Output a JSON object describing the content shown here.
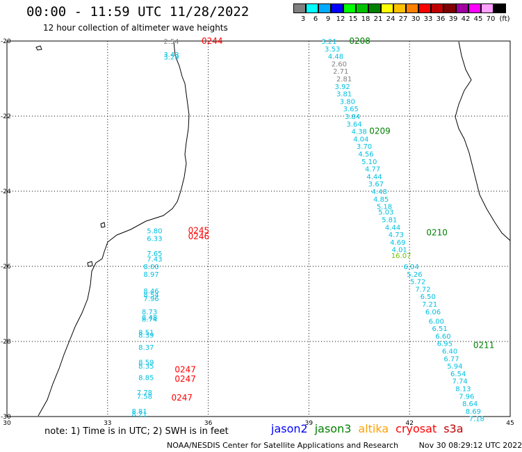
{
  "header": {
    "title": "00:00 - 11:59 UTC 11/28/2022",
    "subtitle": "12 hour collection of altimeter wave heights"
  },
  "colorbar": {
    "unit": "(ft)",
    "swatches": [
      {
        "color": "#808080",
        "label": "3"
      },
      {
        "color": "#00ffff",
        "label": "6"
      },
      {
        "color": "#00aaff",
        "label": "9"
      },
      {
        "color": "#0000ff",
        "label": "12"
      },
      {
        "color": "#00ff00",
        "label": "15"
      },
      {
        "color": "#00c000",
        "label": "18"
      },
      {
        "color": "#008000",
        "label": "21"
      },
      {
        "color": "#ffff00",
        "label": "24"
      },
      {
        "color": "#ffc000",
        "label": "27"
      },
      {
        "color": "#ff8000",
        "label": "30"
      },
      {
        "color": "#ff0000",
        "label": "33"
      },
      {
        "color": "#c00000",
        "label": "36"
      },
      {
        "color": "#800000",
        "label": "39"
      },
      {
        "color": "#a000a0",
        "label": "42"
      },
      {
        "color": "#ff00ff",
        "label": "45"
      },
      {
        "color": "#ffa0ff",
        "label": "70"
      },
      {
        "color": "#000000",
        "label": ""
      }
    ]
  },
  "map": {
    "lon_ticks": [
      "30",
      "33",
      "36",
      "39",
      "42",
      "45"
    ],
    "lat_ticks": [
      "-20",
      "-22",
      "-24",
      "-26",
      "-28",
      "-30"
    ],
    "lon_range": [
      30,
      45
    ],
    "lat_range": [
      -30,
      -20
    ],
    "pass_labels": [
      {
        "text": "0244",
        "lon": 35.8,
        "lat": -20.0,
        "color": "#ff0000"
      },
      {
        "text": "0245",
        "lon": 35.4,
        "lat": -25.05,
        "color": "#ff0000"
      },
      {
        "text": "0246",
        "lon": 35.4,
        "lat": -25.2,
        "color": "#ff0000"
      },
      {
        "text": "0247",
        "lon": 35.0,
        "lat": -28.75,
        "color": "#ff0000"
      },
      {
        "text": "0247",
        "lon": 35.0,
        "lat": -29.0,
        "color": "#ff0000"
      },
      {
        "text": "0247",
        "lon": 34.9,
        "lat": -29.5,
        "color": "#ff0000"
      },
      {
        "text": "0208",
        "lon": 40.2,
        "lat": -20.0,
        "color": "#008000"
      },
      {
        "text": "0209",
        "lon": 40.8,
        "lat": -22.4,
        "color": "#008000"
      },
      {
        "text": "0210",
        "lon": 42.5,
        "lat": -25.1,
        "color": "#008000"
      },
      {
        "text": "0211",
        "lon": 43.9,
        "lat": -28.1,
        "color": "#008000"
      }
    ],
    "wave_readings": [
      {
        "text": "2.54",
        "lon": 34.9,
        "lat": -20.0,
        "color": "#808080"
      },
      {
        "text": "3.43",
        "lon": 34.9,
        "lat": -20.35,
        "color": "#00c0e0"
      },
      {
        "text": "3.29",
        "lon": 34.9,
        "lat": -20.42,
        "color": "#00c0e0"
      },
      {
        "text": "5.80",
        "lon": 34.4,
        "lat": -25.05,
        "color": "#00c0e0"
      },
      {
        "text": "6.33",
        "lon": 34.4,
        "lat": -25.25,
        "color": "#00c0e0"
      },
      {
        "text": "7.65",
        "lon": 34.4,
        "lat": -25.65,
        "color": "#00c0e0"
      },
      {
        "text": "7.43",
        "lon": 34.4,
        "lat": -25.8,
        "color": "#00c0e0"
      },
      {
        "text": "8.00",
        "lon": 34.3,
        "lat": -26.0,
        "color": "#00c0e0"
      },
      {
        "text": "8.97",
        "lon": 34.3,
        "lat": -26.2,
        "color": "#00c0e0"
      },
      {
        "text": "8.46",
        "lon": 34.3,
        "lat": -26.65,
        "color": "#00c0e0"
      },
      {
        "text": "8.54",
        "lon": 34.3,
        "lat": -26.75,
        "color": "#00c0e0"
      },
      {
        "text": "7.96",
        "lon": 34.3,
        "lat": -26.85,
        "color": "#00c0e0"
      },
      {
        "text": "8.73",
        "lon": 34.25,
        "lat": -27.2,
        "color": "#00c0e0"
      },
      {
        "text": "8.48",
        "lon": 34.25,
        "lat": -27.35,
        "color": "#00c0e0"
      },
      {
        "text": "8.74",
        "lon": 34.25,
        "lat": -27.4,
        "color": "#00c0e0"
      },
      {
        "text": "8.51",
        "lon": 34.15,
        "lat": -27.75,
        "color": "#00c0e0"
      },
      {
        "text": "8.39",
        "lon": 34.15,
        "lat": -27.82,
        "color": "#00c0e0"
      },
      {
        "text": "8.37",
        "lon": 34.15,
        "lat": -28.15,
        "color": "#00c0e0"
      },
      {
        "text": "8.59",
        "lon": 34.15,
        "lat": -28.55,
        "color": "#00c0e0"
      },
      {
        "text": "8.35",
        "lon": 34.15,
        "lat": -28.65,
        "color": "#00c0e0"
      },
      {
        "text": "8.85",
        "lon": 34.15,
        "lat": -28.95,
        "color": "#00c0e0"
      },
      {
        "text": "7.78",
        "lon": 34.1,
        "lat": -29.35,
        "color": "#00c0e0"
      },
      {
        "text": "7.58",
        "lon": 34.1,
        "lat": -29.45,
        "color": "#00c0e0"
      },
      {
        "text": "8.81",
        "lon": 33.95,
        "lat": -29.85,
        "color": "#00c0e0"
      },
      {
        "text": "8.21",
        "lon": 33.95,
        "lat": -29.93,
        "color": "#00c0e0"
      },
      {
        "text": "3.21",
        "lon": 39.6,
        "lat": -20.0,
        "color": "#00c0e0"
      },
      {
        "text": "3.53",
        "lon": 39.7,
        "lat": -20.2,
        "color": "#00c0e0"
      },
      {
        "text": "4.48",
        "lon": 39.8,
        "lat": -20.4,
        "color": "#00c0e0"
      },
      {
        "text": "2.60",
        "lon": 39.9,
        "lat": -20.6,
        "color": "#808080"
      },
      {
        "text": "2.71",
        "lon": 39.95,
        "lat": -20.8,
        "color": "#808080"
      },
      {
        "text": "2.81",
        "lon": 40.05,
        "lat": -21.0,
        "color": "#808080"
      },
      {
        "text": "3.92",
        "lon": 40.0,
        "lat": -21.2,
        "color": "#00c0e0"
      },
      {
        "text": "3.81",
        "lon": 40.05,
        "lat": -21.4,
        "color": "#00c0e0"
      },
      {
        "text": "3.80",
        "lon": 40.15,
        "lat": -21.6,
        "color": "#00c0e0"
      },
      {
        "text": "3.65",
        "lon": 40.25,
        "lat": -21.8,
        "color": "#00c0e0"
      },
      {
        "text": "3.84",
        "lon": 40.3,
        "lat": -22.0,
        "color": "#00c0e0"
      },
      {
        "text": "3.64",
        "lon": 40.35,
        "lat": -22.2,
        "color": "#00c0e0"
      },
      {
        "text": "4.38",
        "lon": 40.5,
        "lat": -22.4,
        "color": "#00c0e0"
      },
      {
        "text": "4.04",
        "lon": 40.55,
        "lat": -22.6,
        "color": "#00c0e0"
      },
      {
        "text": "3.70",
        "lon": 40.65,
        "lat": -22.8,
        "color": "#00c0e0"
      },
      {
        "text": "4.56",
        "lon": 40.7,
        "lat": -23.0,
        "color": "#00c0e0"
      },
      {
        "text": "5.10",
        "lon": 40.8,
        "lat": -23.2,
        "color": "#00c0e0"
      },
      {
        "text": "4.77",
        "lon": 40.9,
        "lat": -23.4,
        "color": "#00c0e0"
      },
      {
        "text": "4.44",
        "lon": 40.95,
        "lat": -23.6,
        "color": "#00c0e0"
      },
      {
        "text": "3.67",
        "lon": 41.0,
        "lat": -23.8,
        "color": "#00c0e0"
      },
      {
        "text": "4.48",
        "lon": 41.1,
        "lat": -24.0,
        "color": "#00c0e0"
      },
      {
        "text": "4.85",
        "lon": 41.15,
        "lat": -24.2,
        "color": "#00c0e0"
      },
      {
        "text": "5.18",
        "lon": 41.25,
        "lat": -24.4,
        "color": "#00c0e0"
      },
      {
        "text": "5.03",
        "lon": 41.3,
        "lat": -24.55,
        "color": "#00c0e0"
      },
      {
        "text": "5.81",
        "lon": 41.4,
        "lat": -24.75,
        "color": "#00c0e0"
      },
      {
        "text": "4.44",
        "lon": 41.5,
        "lat": -24.95,
        "color": "#00c0e0"
      },
      {
        "text": "4.73",
        "lon": 41.6,
        "lat": -25.15,
        "color": "#00c0e0"
      },
      {
        "text": "4.69",
        "lon": 41.65,
        "lat": -25.35,
        "color": "#00c0e0"
      },
      {
        "text": "4.01",
        "lon": 41.7,
        "lat": -25.55,
        "color": "#00c0e0"
      },
      {
        "text": "16.07",
        "lon": 41.75,
        "lat": -25.7,
        "color": "#70c000"
      },
      {
        "text": "6.04",
        "lon": 42.05,
        "lat": -26.0,
        "color": "#00c0e0"
      },
      {
        "text": "5.26",
        "lon": 42.15,
        "lat": -26.2,
        "color": "#00c0e0"
      },
      {
        "text": "5.72",
        "lon": 42.25,
        "lat": -26.4,
        "color": "#00c0e0"
      },
      {
        "text": "7.72",
        "lon": 42.4,
        "lat": -26.6,
        "color": "#00c0e0"
      },
      {
        "text": "6.50",
        "lon": 42.55,
        "lat": -26.8,
        "color": "#00c0e0"
      },
      {
        "text": "7.21",
        "lon": 42.6,
        "lat": -27.0,
        "color": "#00c0e0"
      },
      {
        "text": "6.06",
        "lon": 42.7,
        "lat": -27.2,
        "color": "#00c0e0"
      },
      {
        "text": "6.00",
        "lon": 42.8,
        "lat": -27.45,
        "color": "#00c0e0"
      },
      {
        "text": "6.51",
        "lon": 42.9,
        "lat": -27.65,
        "color": "#00c0e0"
      },
      {
        "text": "6.60",
        "lon": 43.0,
        "lat": -27.85,
        "color": "#00c0e0"
      },
      {
        "text": "6.95",
        "lon": 43.05,
        "lat": -28.05,
        "color": "#00c0e0"
      },
      {
        "text": "6.40",
        "lon": 43.2,
        "lat": -28.25,
        "color": "#00c0e0"
      },
      {
        "text": "6.77",
        "lon": 43.25,
        "lat": -28.45,
        "color": "#00c0e0"
      },
      {
        "text": "5.94",
        "lon": 43.35,
        "lat": -28.65,
        "color": "#00c0e0"
      },
      {
        "text": "6.54",
        "lon": 43.45,
        "lat": -28.85,
        "color": "#00c0e0"
      },
      {
        "text": "7.74",
        "lon": 43.5,
        "lat": -29.05,
        "color": "#00c0e0"
      },
      {
        "text": "8.13",
        "lon": 43.6,
        "lat": -29.25,
        "color": "#00c0e0"
      },
      {
        "text": "7.96",
        "lon": 43.7,
        "lat": -29.45,
        "color": "#00c0e0"
      },
      {
        "text": "8.64",
        "lon": 43.8,
        "lat": -29.65,
        "color": "#00c0e0"
      },
      {
        "text": "8.69",
        "lon": 43.9,
        "lat": -29.85,
        "color": "#00c0e0"
      },
      {
        "text": "7.18",
        "lon": 44.0,
        "lat": -30.05,
        "color": "#00c0e0"
      }
    ]
  },
  "footer": {
    "note": "note: 1) Time is in UTC; 2) SWH is in feet",
    "legend": [
      {
        "name": "jason2",
        "color": "#0000ff"
      },
      {
        "name": "jason3",
        "color": "#008000"
      },
      {
        "name": "altika",
        "color": "#ffa000"
      },
      {
        "name": "cryosat",
        "color": "#ff0000"
      },
      {
        "name": "s3a",
        "color": "#c00000"
      }
    ],
    "credit": "NOAA/NESDIS Center for Satellite Applications and Research",
    "timestamp": "Nov 30 08:29:12 UTC 2022"
  }
}
